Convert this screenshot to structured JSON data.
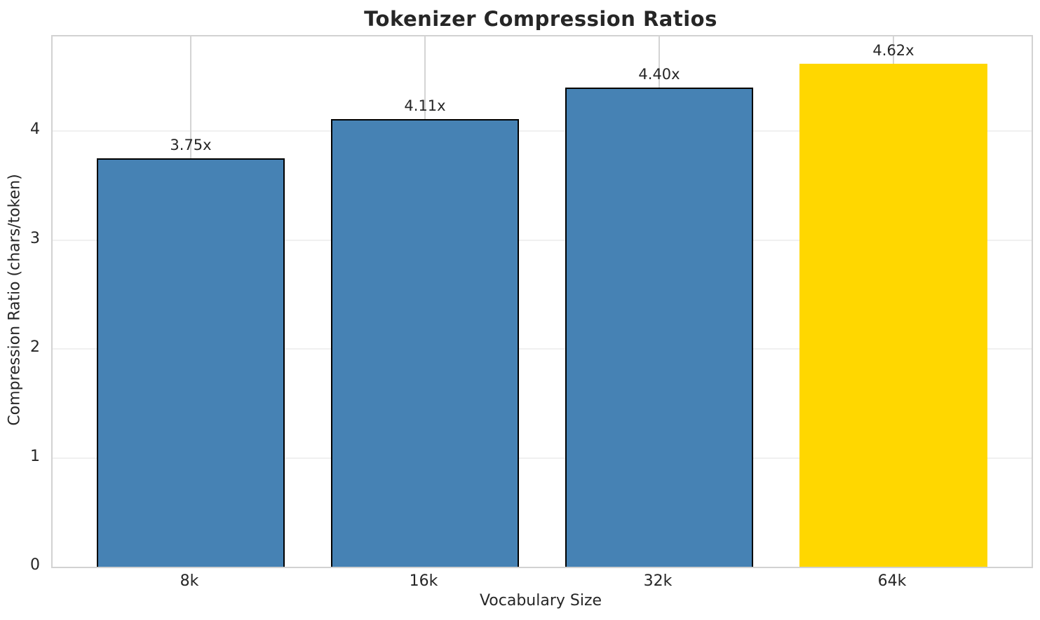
{
  "chart_data": {
    "type": "bar",
    "title": "Tokenizer Compression Ratios",
    "xlabel": "Vocabulary Size",
    "ylabel": "Compression Ratio (chars/token)",
    "categories": [
      "8k",
      "16k",
      "32k",
      "64k"
    ],
    "values": [
      3.75,
      4.11,
      4.4,
      4.62
    ],
    "bar_labels": [
      "3.75x",
      "4.11x",
      "4.40x",
      "4.62x"
    ],
    "yticks": [
      0,
      1,
      2,
      3,
      4
    ],
    "ylim": [
      0,
      4.87
    ],
    "bar_colors": [
      "#4682B4",
      "#4682B4",
      "#4682B4",
      "#FFD700"
    ],
    "bar_edge_colors": [
      "#000000",
      "#000000",
      "#000000",
      "none"
    ],
    "grid": true,
    "legend_position": "none"
  }
}
